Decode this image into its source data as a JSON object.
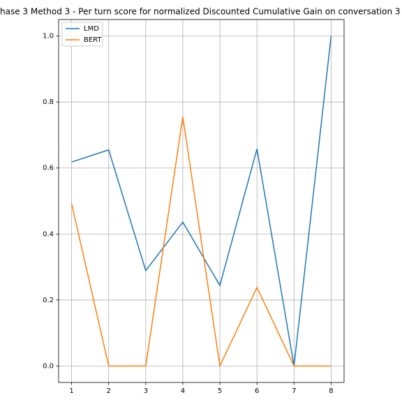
{
  "chart_data": {
    "type": "line",
    "title": "hase 3 Method 3 - Per turn score for normalized Discounted Cumulative Gain on conversation 3",
    "x": [
      1,
      2,
      3,
      4,
      5,
      6,
      7,
      8
    ],
    "series": [
      {
        "name": "LMD",
        "color": "#1f77b4",
        "values": [
          0.618,
          0.655,
          0.289,
          0.436,
          0.244,
          0.658,
          0.0,
          1.0
        ]
      },
      {
        "name": "BERT",
        "color": "#ff7f0e",
        "values": [
          0.492,
          0.0,
          0.0,
          0.755,
          0.0,
          0.238,
          0.0,
          0.0
        ]
      }
    ],
    "xlim": [
      0.65,
      8.35
    ],
    "xticks": [
      1,
      2,
      3,
      4,
      5,
      6,
      7,
      8
    ],
    "ylim": [
      -0.05,
      1.05
    ],
    "yticks": [
      {
        "value": 0,
        "label": "0.0"
      },
      {
        "value": 0.2,
        "label": "0.2"
      },
      {
        "value": 0.4,
        "label": "0.4"
      },
      {
        "value": 0.6,
        "label": "0.6"
      },
      {
        "value": 0.8,
        "label": "0.8"
      },
      {
        "value": 1,
        "label": "1.0"
      }
    ],
    "grid": true,
    "legend": "upper-left"
  }
}
